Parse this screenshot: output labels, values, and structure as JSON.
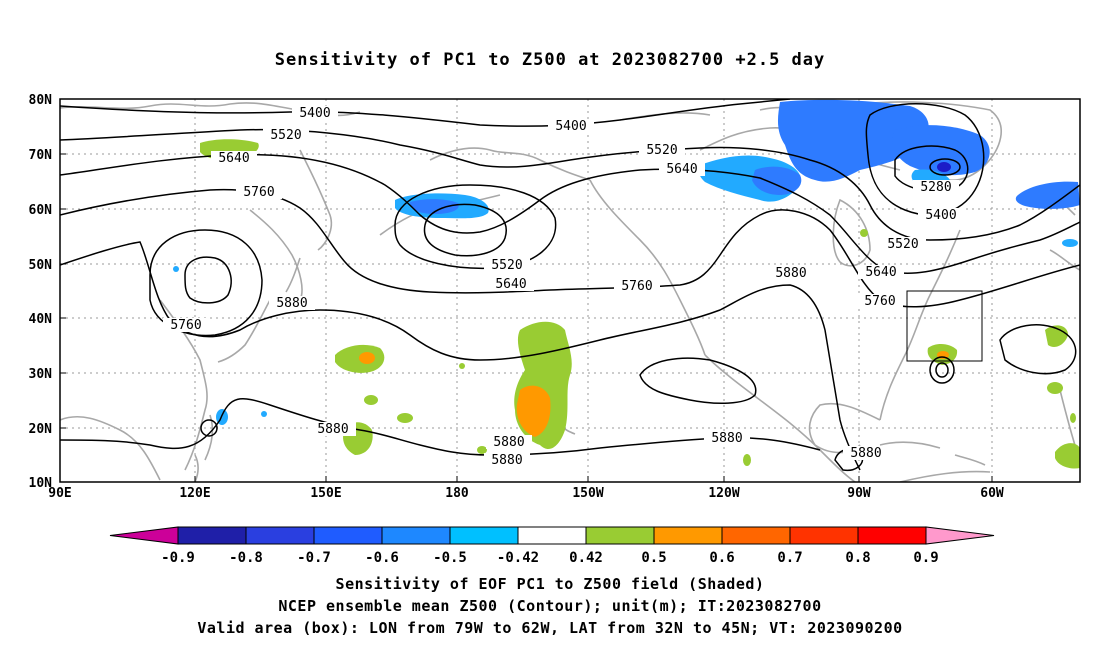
{
  "title": "Sensitivity of PC1 to Z500 at 2023082700 +2.5 day",
  "lat_ticks": [
    "80N",
    "70N",
    "60N",
    "50N",
    "40N",
    "30N",
    "20N",
    "10N"
  ],
  "lon_ticks": [
    "90E",
    "120E",
    "150E",
    "180",
    "150W",
    "120W",
    "90W",
    "60W"
  ],
  "contour_labels": [
    "5400",
    "5520",
    "5640",
    "5760",
    "5880",
    "5280"
  ],
  "colorbar": {
    "labels": [
      "-0.9",
      "-0.8",
      "-0.7",
      "-0.6",
      "-0.5",
      "-0.42",
      "0.42",
      "0.5",
      "0.6",
      "0.7",
      "0.8",
      "0.9"
    ],
    "colors": [
      "#cc0099",
      "#1f1fa8",
      "#2a3fe0",
      "#1f5cff",
      "#1e88ff",
      "#00c0ff",
      "#ffffff",
      "#99cc33",
      "#ff9900",
      "#ff6600",
      "#ff3300",
      "#ff0000",
      "#ff99cc"
    ]
  },
  "shading_colors": {
    "blue": "#2e7bff",
    "light_blue": "#22aaff",
    "deep_blue": "#1c1cc8",
    "green": "#99cc33",
    "orange": "#ff9900"
  },
  "captions": [
    "Sensitivity of EOF PC1 to Z500 field (Shaded)",
    "NCEP ensemble mean Z500 (Contour); unit(m); IT:2023082700",
    "Valid area (box): LON from 79W to 62W, LAT from 32N to 45N; VT: 2023090200"
  ]
}
